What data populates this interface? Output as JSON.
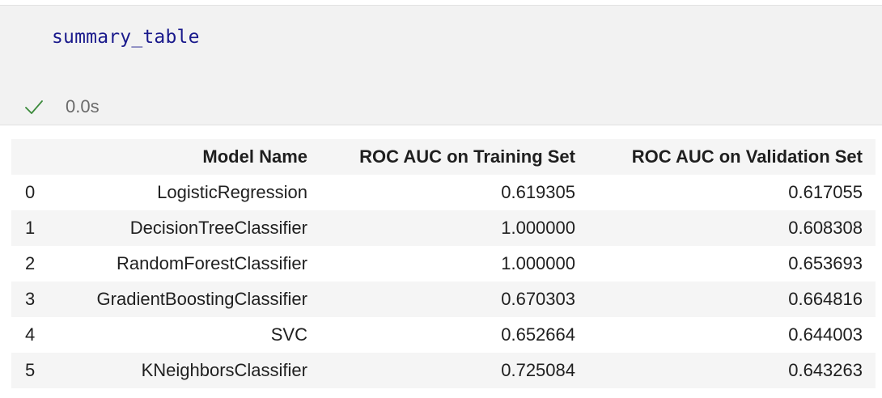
{
  "code_cell": {
    "source": "summary_table",
    "status_icon": "check-icon",
    "exec_time": "0.0s",
    "status_color": "#3b8a3b"
  },
  "table": {
    "columns": [
      "",
      "Model Name",
      "ROC AUC on Training Set",
      "ROC AUC on Validation Set"
    ],
    "rows": [
      {
        "index": "0",
        "model": "LogisticRegression",
        "train": "0.619305",
        "val": "0.617055"
      },
      {
        "index": "1",
        "model": "DecisionTreeClassifier",
        "train": "1.000000",
        "val": "0.608308"
      },
      {
        "index": "2",
        "model": "RandomForestClassifier",
        "train": "1.000000",
        "val": "0.653693"
      },
      {
        "index": "3",
        "model": "GradientBoostingClassifier",
        "train": "0.670303",
        "val": "0.664816"
      },
      {
        "index": "4",
        "model": "SVC",
        "train": "0.652664",
        "val": "0.644003"
      },
      {
        "index": "5",
        "model": "KNeighborsClassifier",
        "train": "0.725084",
        "val": "0.643263"
      }
    ]
  }
}
